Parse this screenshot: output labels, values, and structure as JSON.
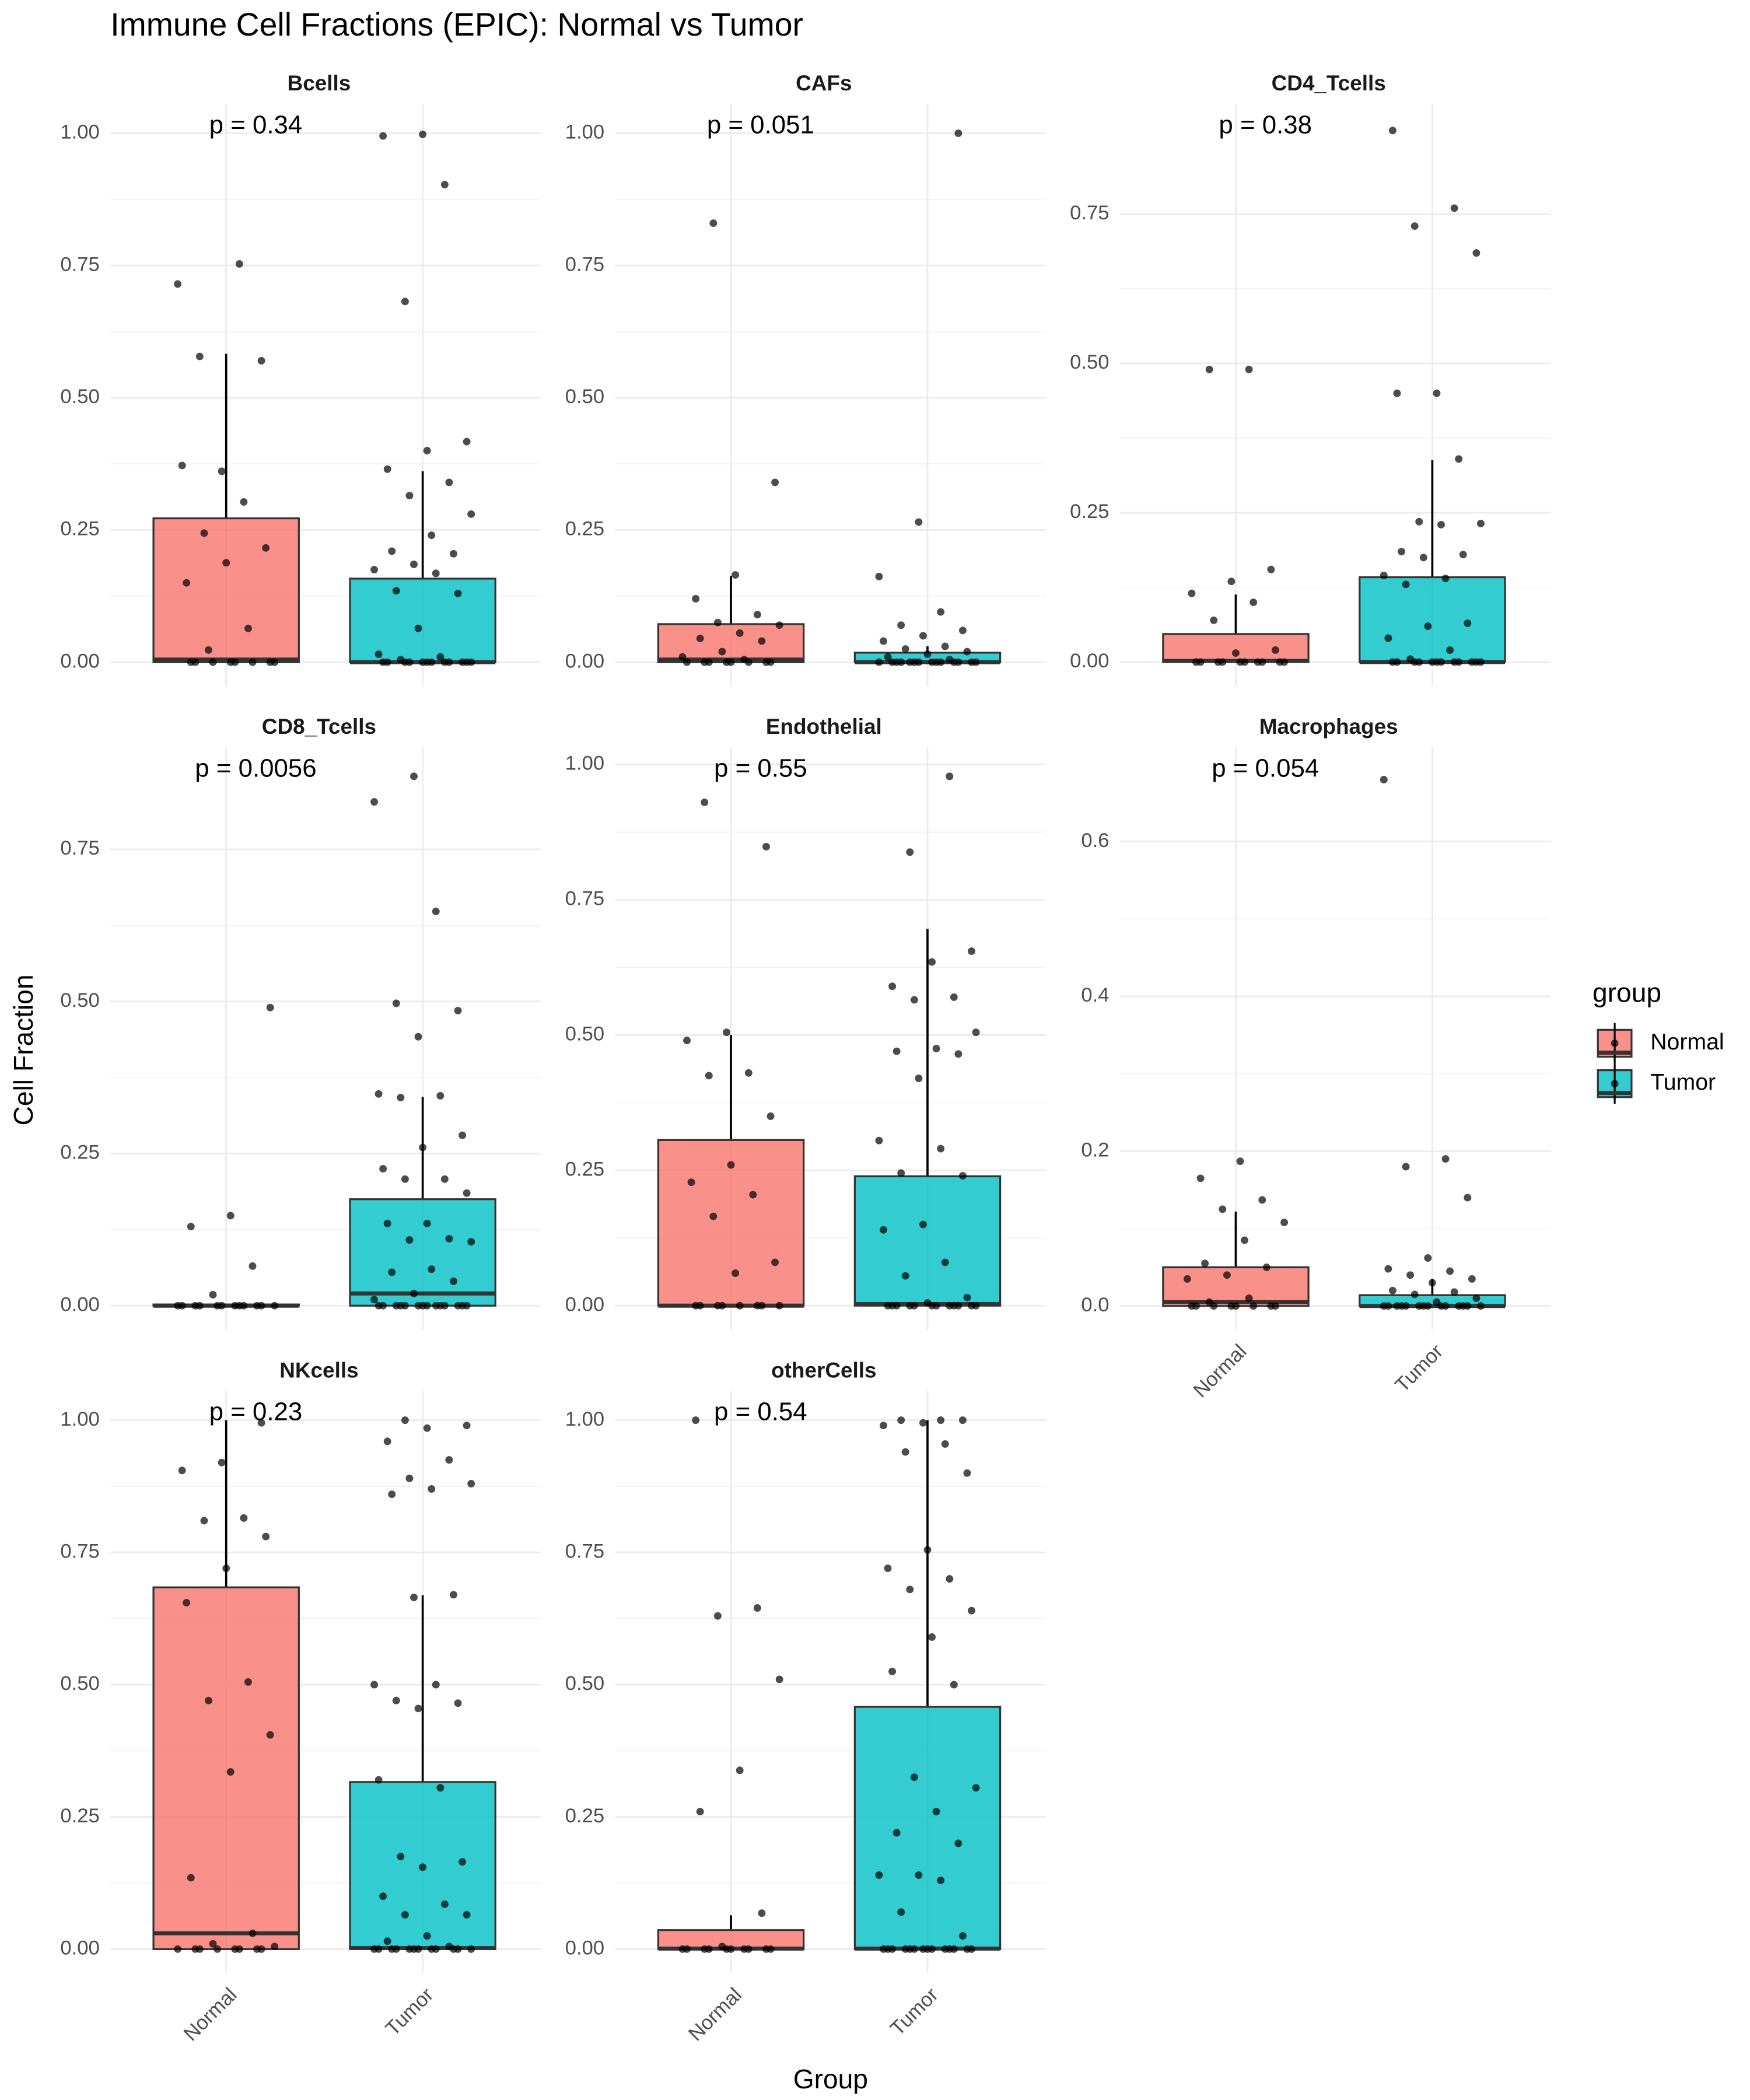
{
  "title": "Immune Cell Fractions (EPIC): Normal vs Tumor",
  "x_label": "Group",
  "y_label": "Cell Fraction",
  "legend": {
    "title": "group",
    "entries": [
      {
        "name": "Normal",
        "color": "#f8766d"
      },
      {
        "name": "Tumor",
        "color": "#00bfc4"
      }
    ]
  },
  "chart_data": [
    {
      "type": "bar",
      "title": "Bcells",
      "annotation": "p = 0.34",
      "ylim": [
        -0.046,
        1.056
      ],
      "yticks": [
        {
          "value": 0,
          "label": "0.00"
        },
        {
          "value": 0.25,
          "label": "0.25"
        },
        {
          "value": 0.5,
          "label": "0.50"
        },
        {
          "value": 0.75,
          "label": "0.75"
        },
        {
          "value": 1,
          "label": "1.00"
        }
      ],
      "values": [
        0.272,
        0.158
      ],
      "errors": [
        0.311,
        0.203
      ],
      "medians": [
        0.005,
        0
      ],
      "points": [
        [
          0.715,
          0.753,
          0.578,
          0.57,
          0.361,
          0.372,
          0.303,
          0.244,
          0.216,
          0.188,
          0.15,
          0.064,
          0.023,
          0,
          0,
          0,
          0,
          0,
          0,
          0,
          0
        ],
        [
          0.998,
          0.995,
          0.903,
          0.682,
          0.417,
          0.4,
          0.365,
          0.34,
          0.315,
          0.28,
          0.24,
          0.21,
          0.205,
          0.185,
          0.175,
          0.168,
          0.135,
          0.13,
          0.064,
          0.015,
          0.01,
          0.005,
          0,
          0,
          0,
          0,
          0,
          0,
          0,
          0,
          0,
          0,
          0,
          0
        ]
      ]
    },
    {
      "type": "bar",
      "title": "CAFs",
      "annotation": "p = 0.051",
      "ylim": [
        -0.046,
        1.056
      ],
      "yticks": [
        {
          "value": 0,
          "label": "0.00"
        },
        {
          "value": 0.25,
          "label": "0.25"
        },
        {
          "value": 0.5,
          "label": "0.50"
        },
        {
          "value": 0.75,
          "label": "0.75"
        },
        {
          "value": 1,
          "label": "1.00"
        }
      ],
      "values": [
        0.072,
        0.018
      ],
      "errors": [
        0.091,
        0.012
      ],
      "medians": [
        0.005,
        0
      ],
      "points": [
        [
          0.83,
          0.34,
          0.165,
          0.12,
          0.09,
          0.075,
          0.07,
          0.055,
          0.045,
          0.04,
          0.02,
          0.01,
          0.005,
          0,
          0,
          0,
          0,
          0,
          0,
          0,
          0
        ],
        [
          1.0,
          0.265,
          0.162,
          0.095,
          0.07,
          0.06,
          0.05,
          0.04,
          0.03,
          0.025,
          0.02,
          0.015,
          0.01,
          0.005,
          0,
          0,
          0,
          0,
          0,
          0,
          0,
          0,
          0,
          0,
          0,
          0,
          0,
          0
        ]
      ]
    },
    {
      "type": "bar",
      "title": "CD4_Tcells",
      "annotation": "p = 0.38",
      "ylim": [
        -0.041,
        0.935
      ],
      "yticks": [
        {
          "value": 0,
          "label": "0.00"
        },
        {
          "value": 0.25,
          "label": "0.25"
        },
        {
          "value": 0.5,
          "label": "0.50"
        },
        {
          "value": 0.75,
          "label": "0.75"
        }
      ],
      "values": [
        0.047,
        0.142
      ],
      "errors": [
        0.066,
        0.196
      ],
      "medians": [
        0.002,
        0
      ],
      "points": [
        [
          0.49,
          0.49,
          0.155,
          0.135,
          0.115,
          0.1,
          0.07,
          0.02,
          0.015,
          0,
          0,
          0,
          0,
          0,
          0,
          0,
          0,
          0,
          0
        ],
        [
          0.89,
          0.76,
          0.73,
          0.685,
          0.45,
          0.45,
          0.34,
          0.235,
          0.232,
          0.23,
          0.185,
          0.18,
          0.175,
          0.145,
          0.14,
          0.13,
          0.065,
          0.06,
          0.04,
          0.02,
          0.005,
          0,
          0,
          0,
          0,
          0,
          0,
          0,
          0,
          0,
          0,
          0,
          0
        ]
      ]
    },
    {
      "type": "bar",
      "title": "CD8_Tcells",
      "annotation": "p = 0.0056",
      "ylim": [
        -0.04,
        0.918
      ],
      "yticks": [
        {
          "value": 0,
          "label": "0.00"
        },
        {
          "value": 0.25,
          "label": "0.25"
        },
        {
          "value": 0.5,
          "label": "0.50"
        },
        {
          "value": 0.75,
          "label": "0.75"
        }
      ],
      "values": [
        0.002,
        0.175
      ],
      "errors": [
        0,
        0.168
      ],
      "medians": [
        0,
        0.02
      ],
      "points": [
        [
          0.49,
          0.148,
          0.13,
          0.065,
          0.018,
          0,
          0,
          0,
          0,
          0,
          0,
          0,
          0,
          0,
          0,
          0,
          0
        ],
        [
          0.87,
          0.828,
          0.648,
          0.497,
          0.485,
          0.442,
          0.348,
          0.345,
          0.342,
          0.28,
          0.26,
          0.225,
          0.208,
          0.208,
          0.185,
          0.135,
          0.135,
          0.11,
          0.108,
          0.105,
          0.06,
          0.055,
          0.04,
          0.02,
          0.01,
          0,
          0,
          0,
          0,
          0,
          0,
          0,
          0,
          0,
          0,
          0,
          0,
          0,
          0
        ]
      ]
    },
    {
      "type": "bar",
      "title": "Endothelial",
      "annotation": "p = 0.55",
      "ylim": [
        -0.045,
        1.032
      ],
      "yticks": [
        {
          "value": 0,
          "label": "0.00"
        },
        {
          "value": 0.25,
          "label": "0.25"
        },
        {
          "value": 0.5,
          "label": "0.50"
        },
        {
          "value": 0.75,
          "label": "0.75"
        },
        {
          "value": 1,
          "label": "1.00"
        }
      ],
      "values": [
        0.306,
        0.239
      ],
      "errors": [
        0.194,
        0.457
      ],
      "medians": [
        0,
        0.003
      ],
      "points": [
        [
          0.93,
          0.848,
          0.505,
          0.49,
          0.43,
          0.425,
          0.35,
          0.26,
          0.228,
          0.205,
          0.165,
          0.08,
          0.06,
          0,
          0,
          0,
          0,
          0,
          0,
          0,
          0
        ],
        [
          0.978,
          0.838,
          0.655,
          0.635,
          0.59,
          0.57,
          0.565,
          0.505,
          0.475,
          0.47,
          0.465,
          0.42,
          0.305,
          0.29,
          0.245,
          0.24,
          0.15,
          0.14,
          0.08,
          0.055,
          0.015,
          0.005,
          0,
          0,
          0,
          0,
          0,
          0,
          0,
          0,
          0,
          0,
          0,
          0
        ]
      ]
    },
    {
      "type": "bar",
      "title": "Macrophages",
      "annotation": "p = 0.054",
      "ylim": [
        -0.031,
        0.722
      ],
      "yticks": [
        {
          "value": 0,
          "label": "0.0"
        },
        0.2,
        0.4,
        0.6
      ],
      "categories": [
        "Normal",
        "Tumor"
      ],
      "values": [
        0.05,
        0.014
      ],
      "errors": [
        0.072,
        0.021
      ],
      "medians": [
        0.005,
        0
      ],
      "points": [
        [
          0.187,
          0.165,
          0.137,
          0.125,
          0.108,
          0.085,
          0.055,
          0.05,
          0.04,
          0.035,
          0.01,
          0.005,
          0,
          0,
          0,
          0,
          0,
          0,
          0,
          0
        ],
        [
          0.68,
          0.19,
          0.18,
          0.14,
          0.062,
          0.048,
          0.045,
          0.04,
          0.035,
          0.03,
          0.02,
          0.018,
          0.015,
          0.01,
          0.005,
          0,
          0,
          0,
          0,
          0,
          0,
          0,
          0,
          0,
          0,
          0,
          0,
          0,
          0
        ]
      ]
    },
    {
      "type": "bar",
      "title": "NKcells",
      "annotation": "p = 0.23",
      "ylim": [
        -0.046,
        1.056
      ],
      "yticks": [
        {
          "value": 0,
          "label": "0.00"
        },
        {
          "value": 0.25,
          "label": "0.25"
        },
        {
          "value": 0.5,
          "label": "0.50"
        },
        {
          "value": 0.75,
          "label": "0.75"
        },
        {
          "value": 1,
          "label": "1.00"
        }
      ],
      "categories": [
        "Normal",
        "Tumor"
      ],
      "values": [
        0.684,
        0.316
      ],
      "errors": [
        0.316,
        0.353
      ],
      "medians": [
        0.03,
        0.002
      ],
      "points": [
        [
          0.995,
          0.92,
          0.905,
          0.815,
          0.81,
          0.78,
          0.72,
          0.655,
          0.505,
          0.47,
          0.405,
          0.335,
          0.135,
          0.03,
          0.01,
          0.005,
          0,
          0,
          0,
          0,
          0,
          0,
          0,
          0
        ],
        [
          1.0,
          0.99,
          0.985,
          0.96,
          0.925,
          0.89,
          0.88,
          0.87,
          0.86,
          0.67,
          0.665,
          0.5,
          0.5,
          0.47,
          0.465,
          0.455,
          0.32,
          0.305,
          0.175,
          0.165,
          0.155,
          0.1,
          0.085,
          0.065,
          0.065,
          0.025,
          0.015,
          0.005,
          0,
          0,
          0,
          0,
          0,
          0,
          0,
          0,
          0,
          0,
          0,
          0
        ]
      ]
    },
    {
      "type": "bar",
      "title": "otherCells",
      "annotation": "p = 0.54",
      "ylim": [
        -0.046,
        1.056
      ],
      "yticks": [
        {
          "value": 0,
          "label": "0.00"
        },
        {
          "value": 0.25,
          "label": "0.25"
        },
        {
          "value": 0.5,
          "label": "0.50"
        },
        {
          "value": 0.75,
          "label": "0.75"
        },
        {
          "value": 1,
          "label": "1.00"
        }
      ],
      "categories": [
        "Normal",
        "Tumor"
      ],
      "values": [
        0.036,
        0.458
      ],
      "errors": [
        0.028,
        0.542
      ],
      "medians": [
        0.001,
        0.001
      ],
      "points": [
        [
          1.0,
          0.645,
          0.63,
          0.51,
          0.338,
          0.26,
          0.068,
          0.005,
          0,
          0,
          0,
          0,
          0,
          0,
          0,
          0,
          0,
          0
        ],
        [
          1.0,
          1.0,
          1.0,
          0.995,
          0.99,
          0.955,
          0.94,
          0.9,
          0.755,
          0.72,
          0.7,
          0.68,
          0.64,
          0.59,
          0.525,
          0.5,
          0.325,
          0.305,
          0.26,
          0.22,
          0.2,
          0.14,
          0.14,
          0.13,
          0.07,
          0.025,
          0,
          0,
          0,
          0,
          0,
          0,
          0,
          0,
          0,
          0,
          0,
          0,
          0,
          0
        ]
      ]
    }
  ]
}
